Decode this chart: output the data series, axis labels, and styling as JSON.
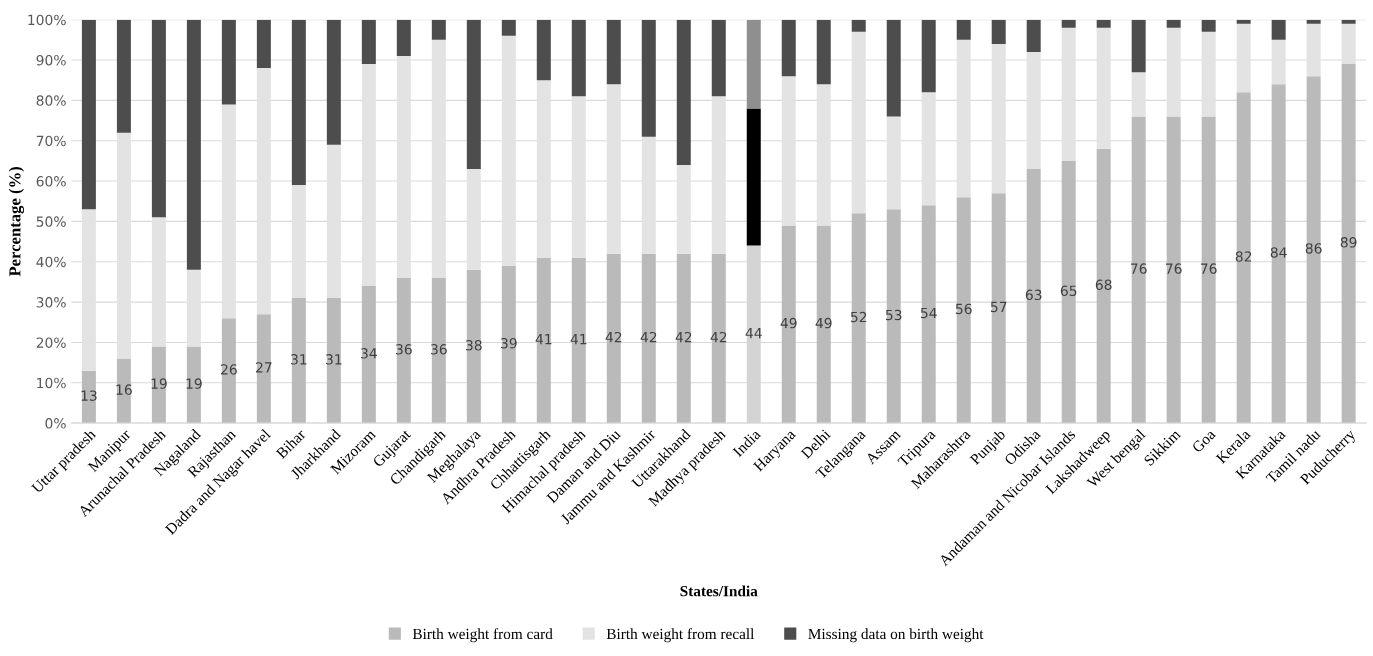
{
  "chart_data": {
    "type": "bar",
    "stacked": true,
    "xlabel": "States/India",
    "ylabel": "Percentage (%)",
    "categories": [
      "Uttar pradesh",
      "Manipur",
      "Arunachal Pradesh",
      "Nagaland",
      "Rajasthan",
      "Dadra and Nagar havel",
      "Bihar",
      "Jharkhand",
      "Mizoram",
      "Gujarat",
      "Chandigarh",
      "Meghalaya",
      "Andhra Pradesh",
      "Chhattisgarh",
      "Himachal pradesh",
      "Daman and Diu",
      "Jammu and Kashmir",
      "Uttarakhand",
      "Madhya pradesh",
      "India",
      "Haryana",
      "Delhi",
      "Telangana",
      "Assam",
      "Tripura",
      "Maharashtra",
      "Punjab",
      "Odisha",
      "Andaman and Nicobar Islands",
      "Lakshadweep",
      "West bengal",
      "Sikkim",
      "Goa",
      "Kerala",
      "Karnataka",
      "Tamil nadu",
      "Puducherry"
    ],
    "series": [
      {
        "name": "Birth weight from card",
        "color": "#bababa",
        "colors": [
          "#bababa",
          "#bababa",
          "#bababa",
          "#bababa",
          "#bababa",
          "#bababa",
          "#bababa",
          "#bababa",
          "#bababa",
          "#bababa",
          "#bababa",
          "#bababa",
          "#bababa",
          "#bababa",
          "#bababa",
          "#bababa",
          "#bababa",
          "#bababa",
          "#bababa",
          "#d4d4d4",
          "#bababa",
          "#bababa",
          "#bababa",
          "#bababa",
          "#bababa",
          "#bababa",
          "#bababa",
          "#bababa",
          "#bababa",
          "#bababa",
          "#bababa",
          "#bababa",
          "#bababa",
          "#bababa",
          "#bababa",
          "#bababa",
          "#bababa"
        ],
        "values": [
          13,
          16,
          19,
          19,
          26,
          27,
          31,
          31,
          34,
          36,
          36,
          38,
          39,
          41,
          41,
          42,
          42,
          42,
          42,
          44,
          49,
          49,
          52,
          53,
          54,
          56,
          57,
          63,
          65,
          68,
          76,
          76,
          76,
          82,
          84,
          86,
          89
        ],
        "value_labels": [
          "13",
          "16",
          "19",
          "19",
          "26",
          "27",
          "31",
          "31",
          "34",
          "36",
          "36",
          "38",
          "39",
          "41",
          "41",
          "42",
          "42",
          "42",
          "42",
          "44",
          "49",
          "49",
          "52",
          "53",
          "54",
          "56",
          "57",
          "63",
          "65",
          "68",
          "76",
          "76",
          "76",
          "82",
          "84",
          "86",
          "89"
        ]
      },
      {
        "name": "Birth weight from recall",
        "color": "#e3e3e3",
        "colors": [
          "#e3e3e3",
          "#e3e3e3",
          "#e3e3e3",
          "#e3e3e3",
          "#e3e3e3",
          "#e3e3e3",
          "#e3e3e3",
          "#e3e3e3",
          "#e3e3e3",
          "#e3e3e3",
          "#e3e3e3",
          "#e3e3e3",
          "#e3e3e3",
          "#e3e3e3",
          "#e3e3e3",
          "#e3e3e3",
          "#e3e3e3",
          "#e3e3e3",
          "#e3e3e3",
          "#000000",
          "#e3e3e3",
          "#e3e3e3",
          "#e3e3e3",
          "#e3e3e3",
          "#e3e3e3",
          "#e3e3e3",
          "#e3e3e3",
          "#e3e3e3",
          "#e3e3e3",
          "#e3e3e3",
          "#e3e3e3",
          "#e3e3e3",
          "#e3e3e3",
          "#e3e3e3",
          "#e3e3e3",
          "#e3e3e3",
          "#e3e3e3"
        ],
        "values": [
          40,
          56,
          32,
          19,
          53,
          61,
          28,
          38,
          55,
          55,
          59,
          25,
          57,
          44,
          40,
          42,
          29,
          22,
          39,
          34,
          37,
          35,
          45,
          23,
          28,
          39,
          37,
          29,
          33,
          30,
          11,
          22,
          21,
          17,
          11,
          13,
          10
        ]
      },
      {
        "name": "Missing data on birth weight",
        "color": "#4d4d4d",
        "colors": [
          "#4d4d4d",
          "#4d4d4d",
          "#4d4d4d",
          "#4d4d4d",
          "#4d4d4d",
          "#4d4d4d",
          "#4d4d4d",
          "#4d4d4d",
          "#4d4d4d",
          "#4d4d4d",
          "#4d4d4d",
          "#4d4d4d",
          "#4d4d4d",
          "#4d4d4d",
          "#4d4d4d",
          "#4d4d4d",
          "#4d4d4d",
          "#4d4d4d",
          "#4d4d4d",
          "#8f8f8f",
          "#4d4d4d",
          "#4d4d4d",
          "#4d4d4d",
          "#4d4d4d",
          "#4d4d4d",
          "#4d4d4d",
          "#4d4d4d",
          "#4d4d4d",
          "#4d4d4d",
          "#4d4d4d",
          "#4d4d4d",
          "#4d4d4d",
          "#4d4d4d",
          "#4d4d4d",
          "#4d4d4d",
          "#4d4d4d",
          "#4d4d4d"
        ],
        "values": [
          47,
          28,
          49,
          62,
          21,
          12,
          41,
          31,
          11,
          9,
          5,
          37,
          4,
          15,
          19,
          16,
          29,
          36,
          19,
          22,
          14,
          16,
          3,
          24,
          18,
          5,
          6,
          8,
          2,
          2,
          13,
          2,
          3,
          1,
          5,
          1,
          1
        ]
      }
    ],
    "ylim": [
      0,
      100
    ],
    "yticks": [
      {
        "value": 0,
        "label": "0%"
      },
      {
        "value": 10,
        "label": "10%"
      },
      {
        "value": 20,
        "label": "20%"
      },
      {
        "value": 30,
        "label": "30%"
      },
      {
        "value": 40,
        "label": "40%"
      },
      {
        "value": 50,
        "label": "50%"
      },
      {
        "value": 60,
        "label": "60%"
      },
      {
        "value": 70,
        "label": "70%"
      },
      {
        "value": 80,
        "label": "80%"
      },
      {
        "value": 90,
        "label": "90%"
      },
      {
        "value": 100,
        "label": "100%"
      }
    ],
    "grid": "y",
    "legend": "bottom"
  }
}
